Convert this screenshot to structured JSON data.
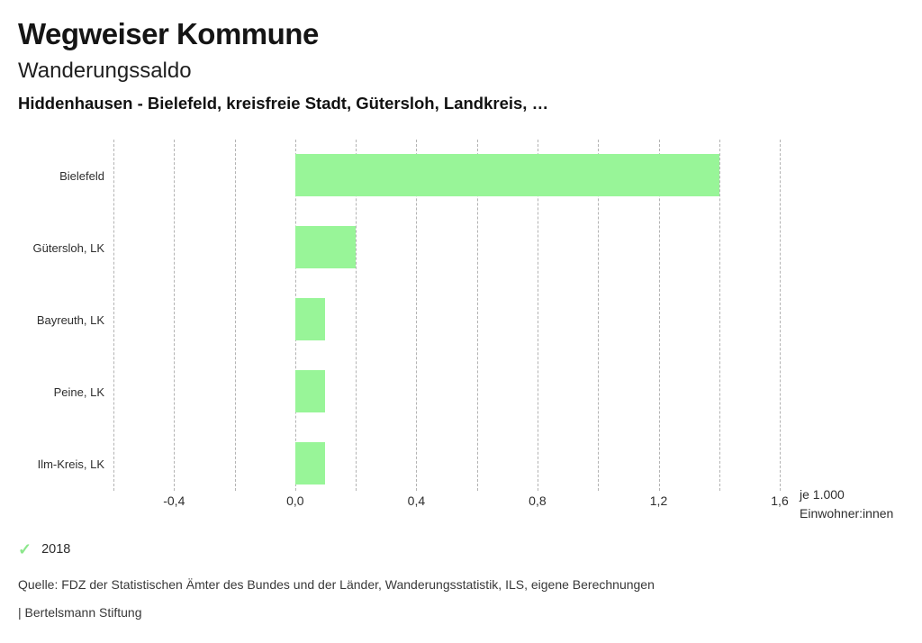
{
  "header": {
    "title": "Wegweiser Kommune",
    "subtitle": "Wanderungssaldo",
    "selection": "Hiddenhausen - Bielefeld, kreisfreie Stadt, Gütersloh, Landkreis, …"
  },
  "chart_data": {
    "type": "bar",
    "orientation": "horizontal",
    "title": "Wanderungssaldo",
    "categories": [
      "Bielefeld",
      "Gütersloh, LK",
      "Bayreuth, LK",
      "Peine, LK",
      "Ilm-Kreis, LK"
    ],
    "series": [
      {
        "name": "2018",
        "values": [
          1.4,
          0.2,
          0.1,
          0.1,
          0.1
        ]
      }
    ],
    "xlim": [
      -0.6,
      1.6
    ],
    "grid": true,
    "grid_step": 0.2,
    "xticks": [
      {
        "value": -0.4,
        "label": "-0,4"
      },
      {
        "value": 0.0,
        "label": "0,0"
      },
      {
        "value": 0.4,
        "label": "0,4"
      },
      {
        "value": 0.8,
        "label": "0,8"
      },
      {
        "value": 1.2,
        "label": "1,2"
      },
      {
        "value": 1.6,
        "label": "1,6"
      }
    ],
    "unit_lines": [
      "je 1.000",
      "Einwohner:innen"
    ],
    "bar_color": "#98f598",
    "legend_position": "bottom-left"
  },
  "legend": {
    "check_glyph": "✓",
    "check_color": "#8ce78c",
    "label": "2018"
  },
  "footer": {
    "source": "Quelle: FDZ der Statistischen Ämter des Bundes und der Länder, Wanderungsstatistik, ILS, eigene Berechnungen",
    "brand": "| Bertelsmann Stiftung"
  }
}
